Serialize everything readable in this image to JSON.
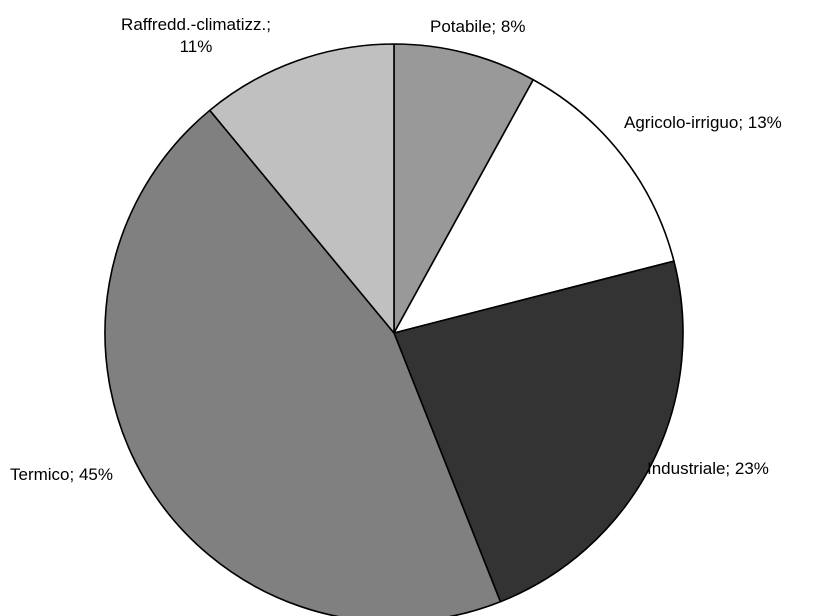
{
  "chart_data": {
    "type": "pie",
    "title": "",
    "start_angle_deg": 0,
    "direction": "clockwise",
    "slices": [
      {
        "label": "Potabile",
        "value": 8,
        "color": "#999999",
        "label_lines": [
          "Potabile; 8%"
        ]
      },
      {
        "label": "Agricolo-irriguo",
        "value": 13,
        "color": "#ffffff",
        "label_lines": [
          "Agricolo-irriguo; 13%"
        ]
      },
      {
        "label": "Industriale",
        "value": 23,
        "color": "#333333",
        "label_lines": [
          "Industriale; 23%"
        ]
      },
      {
        "label": "Termico",
        "value": 45,
        "color": "#808080",
        "label_lines": [
          "Termico; 45%"
        ]
      },
      {
        "label": "Raffredd.-climatizz.",
        "value": 11,
        "color": "#c0c0c0",
        "label_lines": [
          "Raffredd.-climatizz.;",
          "11%"
        ]
      }
    ]
  }
}
